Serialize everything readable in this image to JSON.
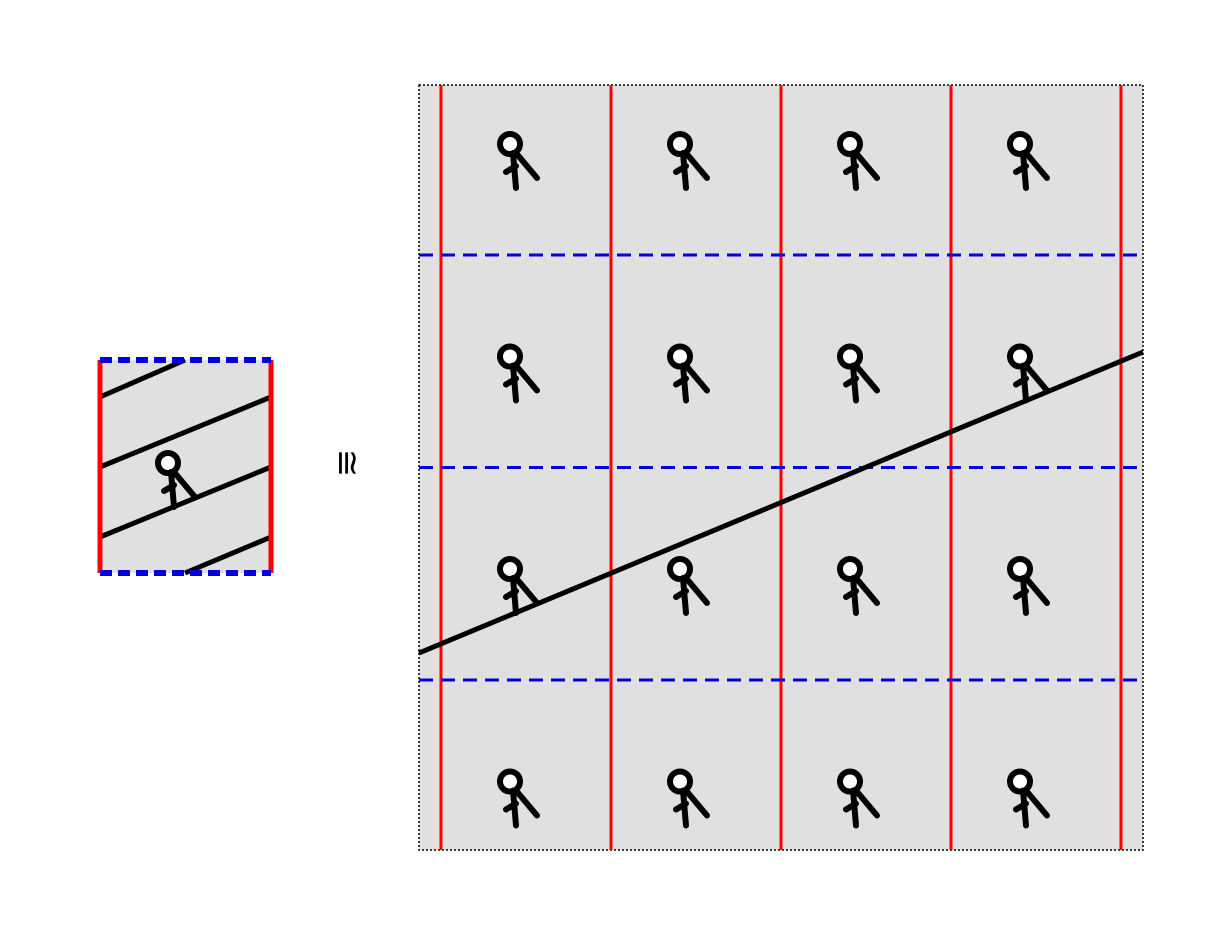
{
  "relation_symbol": "≅",
  "colors": {
    "background": "#ffffff",
    "tile_fill": "#e0e0e0",
    "vertical_edge": "#ff0000",
    "horizontal_edge": "#0000dd",
    "line": "#000000",
    "frame": "#000000"
  },
  "fundamental_domain": {
    "figure": "walker-icon",
    "line_pieces": 4
  },
  "cover": {
    "rows": 4,
    "cols": 4,
    "figure": "walker-icon",
    "line": "straight-line-slope"
  }
}
